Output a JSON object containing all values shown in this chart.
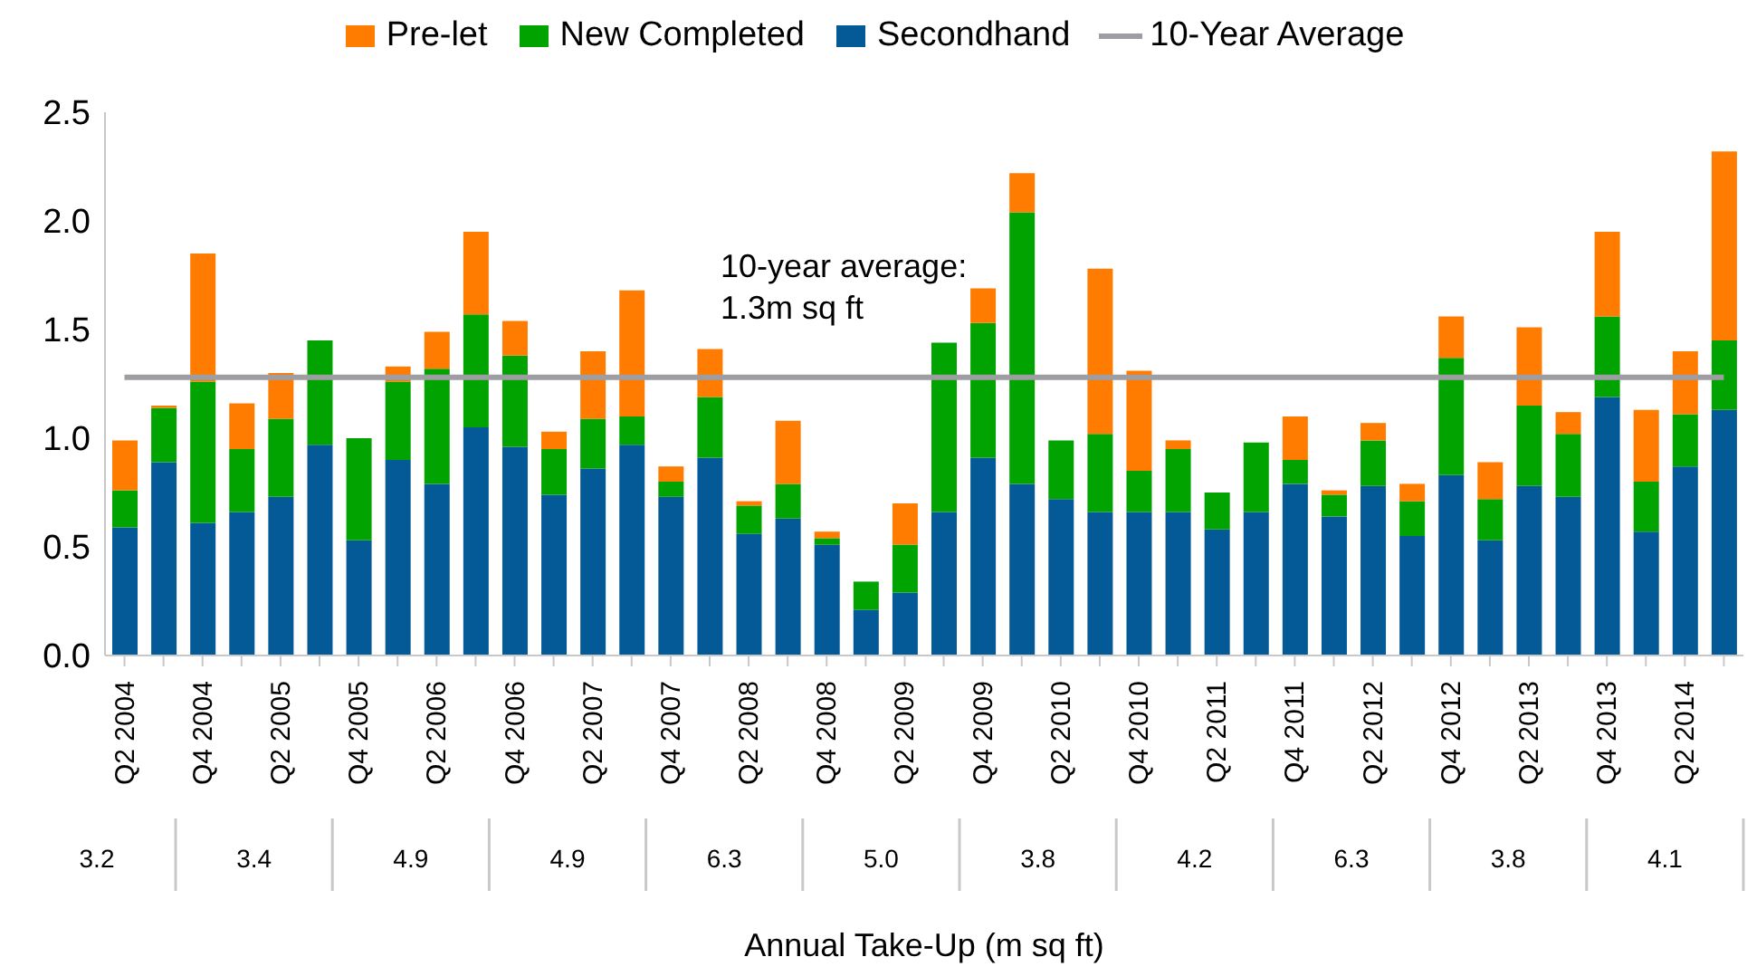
{
  "chart_data": {
    "type": "bar",
    "stacked": true,
    "categories": [
      "Q2 2004",
      null,
      "Q4 2004",
      null,
      "Q2 2005",
      null,
      "Q4 2005",
      null,
      "Q2 2006",
      null,
      "Q4 2006",
      null,
      "Q2 2007",
      null,
      "Q4 2007",
      null,
      "Q2 2008",
      null,
      "Q4 2008",
      null,
      "Q2 2009",
      null,
      "Q4 2009",
      null,
      "Q2 2010",
      null,
      "Q4 2010",
      null,
      "Q2 2011",
      null,
      "Q4 2011",
      null,
      "Q2 2012",
      null,
      "Q4 2012",
      null,
      "Q2 2013",
      null,
      "Q4 2013",
      null,
      "Q2 2014",
      null
    ],
    "series": [
      {
        "name": "Secondhand",
        "color": "#045a96",
        "values": [
          0.59,
          0.89,
          0.61,
          0.66,
          0.73,
          0.97,
          0.53,
          0.9,
          0.79,
          1.05,
          0.96,
          0.74,
          0.86,
          0.97,
          0.73,
          0.91,
          0.56,
          0.63,
          0.51,
          0.21,
          0.29,
          0.66,
          0.91,
          0.79,
          0.72,
          0.66,
          0.66,
          0.66,
          0.58,
          0.66,
          0.79,
          0.64,
          0.78,
          0.55,
          0.83,
          0.53,
          0.78,
          0.73,
          1.19,
          0.57,
          0.87,
          1.13
        ]
      },
      {
        "name": "New Completed",
        "color": "#00a300",
        "values": [
          0.17,
          0.25,
          0.65,
          0.29,
          0.36,
          0.48,
          0.47,
          0.36,
          0.53,
          0.52,
          0.42,
          0.21,
          0.23,
          0.13,
          0.07,
          0.28,
          0.13,
          0.16,
          0.03,
          0.13,
          0.22,
          0.78,
          0.62,
          1.25,
          0.27,
          0.36,
          0.19,
          0.29,
          0.17,
          0.32,
          0.11,
          0.1,
          0.21,
          0.16,
          0.54,
          0.19,
          0.37,
          0.29,
          0.37,
          0.23,
          0.24,
          0.32
        ]
      },
      {
        "name": "Pre-let",
        "color": "#ff7c00",
        "values": [
          0.23,
          0.01,
          0.59,
          0.21,
          0.21,
          0,
          0,
          0.07,
          0.17,
          0.38,
          0.16,
          0.08,
          0.31,
          0.58,
          0.07,
          0.22,
          0.02,
          0.29,
          0.03,
          0,
          0.19,
          0,
          0.16,
          0.18,
          0,
          0.76,
          0.46,
          0.04,
          0,
          0,
          0.2,
          0.02,
          0.08,
          0.08,
          0.19,
          0.17,
          0.36,
          0.1,
          0.39,
          0.33,
          0.29,
          0.87
        ]
      },
      {
        "name": "10-Year Average",
        "type": "line",
        "color": "#9d9da2",
        "values": [
          1.28,
          1.28,
          1.28,
          1.28,
          1.28,
          1.28,
          1.28,
          1.28,
          1.28,
          1.28,
          1.28,
          1.28,
          1.28,
          1.28,
          1.28,
          1.28,
          1.28,
          1.28,
          1.28,
          1.28,
          1.28,
          1.28,
          1.28,
          1.28,
          1.28,
          1.28,
          1.28,
          1.28,
          1.28,
          1.28,
          1.28,
          1.28,
          1.28,
          1.28,
          1.28,
          1.28,
          1.28,
          1.28,
          1.28,
          1.28,
          1.28,
          1.28
        ]
      }
    ],
    "ylim": [
      0,
      2.5
    ],
    "yticks": [
      {
        "value": 0,
        "label": "0.0"
      },
      {
        "value": 0.5,
        "label": "0.5"
      },
      {
        "value": 1,
        "label": "1.0"
      },
      {
        "value": 1.5,
        "label": "1.5"
      },
      {
        "value": 2,
        "label": "2.0"
      },
      {
        "value": 2.5,
        "label": "2.5"
      }
    ],
    "xlabel": "Annual Take-Up (m sq ft)",
    "annotations": [
      "10-year average:\n1.3m sq ft",
      "3.2",
      "3.4",
      "4.9",
      "4.9",
      "6.3",
      "5.0",
      "3.8",
      "4.2",
      "6.3",
      "3.8",
      "4.1"
    ],
    "legend": "top",
    "marker": "none"
  }
}
